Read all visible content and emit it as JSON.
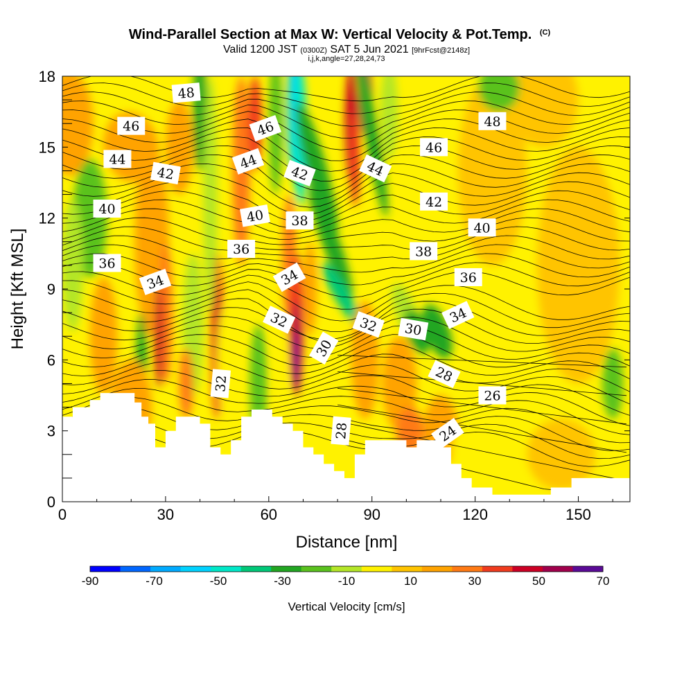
{
  "title": {
    "main": "Wind-Parallel Section at Max W: Vertical Velocity & Pot.Temp.",
    "copyright": "(C)",
    "valid_prefix": "Valid 1200 JST",
    "valid_utc": "(0300Z)",
    "valid_date": "SAT 5 Jun 2021",
    "forecast": "[9hrFcst@2148z]",
    "indices": "i,j,k,angle=27,28,24,73"
  },
  "chart_data": {
    "type": "heatmap",
    "xlabel": "Distance [nm]",
    "ylabel": "Height [Kft MSL]",
    "xlim": [
      0,
      165
    ],
    "ylim": [
      0,
      18
    ],
    "x_ticks": [
      0,
      30,
      60,
      90,
      120,
      150
    ],
    "y_ticks": [
      0,
      3,
      6,
      9,
      12,
      15,
      18
    ],
    "colorbar": {
      "title": "Vertical Velocity [cm/s]",
      "range": [
        -90,
        70
      ],
      "tick_labels": [
        -90,
        -70,
        -50,
        -30,
        -10,
        10,
        30,
        50,
        70
      ],
      "colors": [
        "#0000ff",
        "#0066ff",
        "#00aaff",
        "#00d2ff",
        "#00e8c8",
        "#00c878",
        "#22a622",
        "#5ac21e",
        "#b4e628",
        "#fff200",
        "#ffc400",
        "#ffa300",
        "#ff7a14",
        "#f03b1e",
        "#cc0024",
        "#a0004c",
        "#5a0a96"
      ]
    },
    "contour_variable": "Pot.Temp.",
    "contour_labels": [
      {
        "text": "48",
        "x": 36,
        "y": 17.3,
        "angle": -5
      },
      {
        "text": "46",
        "x": 20,
        "y": 15.9,
        "angle": 0
      },
      {
        "text": "44",
        "x": 16,
        "y": 14.5,
        "angle": 0
      },
      {
        "text": "42",
        "x": 30,
        "y": 13.9,
        "angle": 10
      },
      {
        "text": "40",
        "x": 13,
        "y": 12.4,
        "angle": 0
      },
      {
        "text": "36",
        "x": 13,
        "y": 10.1,
        "angle": 0
      },
      {
        "text": "34",
        "x": 27,
        "y": 9.3,
        "angle": -20
      },
      {
        "text": "46",
        "x": 59,
        "y": 15.8,
        "angle": -20
      },
      {
        "text": "44",
        "x": 54,
        "y": 14.4,
        "angle": -20
      },
      {
        "text": "40",
        "x": 56,
        "y": 12.1,
        "angle": -10
      },
      {
        "text": "36",
        "x": 52,
        "y": 10.7,
        "angle": 0
      },
      {
        "text": "42",
        "x": 69,
        "y": 13.9,
        "angle": 20
      },
      {
        "text": "38",
        "x": 69,
        "y": 11.9,
        "angle": 0
      },
      {
        "text": "34",
        "x": 66,
        "y": 9.5,
        "angle": -30
      },
      {
        "text": "32",
        "x": 63,
        "y": 7.7,
        "angle": 25
      },
      {
        "text": "30",
        "x": 76,
        "y": 6.5,
        "angle": -60
      },
      {
        "text": "32",
        "x": 89,
        "y": 7.5,
        "angle": 20
      },
      {
        "text": "44",
        "x": 91,
        "y": 14.1,
        "angle": 25
      },
      {
        "text": "46",
        "x": 108,
        "y": 15.0,
        "angle": 0
      },
      {
        "text": "48",
        "x": 125,
        "y": 16.1,
        "angle": 0
      },
      {
        "text": "42",
        "x": 108,
        "y": 12.7,
        "angle": 0
      },
      {
        "text": "40",
        "x": 122,
        "y": 11.6,
        "angle": 0
      },
      {
        "text": "38",
        "x": 105,
        "y": 10.6,
        "angle": 0
      },
      {
        "text": "36",
        "x": 118,
        "y": 9.5,
        "angle": 0
      },
      {
        "text": "34",
        "x": 115,
        "y": 7.9,
        "angle": -25
      },
      {
        "text": "30",
        "x": 102,
        "y": 7.3,
        "angle": 10
      },
      {
        "text": "28",
        "x": 111,
        "y": 5.4,
        "angle": 25
      },
      {
        "text": "26",
        "x": 125,
        "y": 4.5,
        "angle": 0
      },
      {
        "text": "24",
        "x": 112,
        "y": 2.9,
        "angle": -35
      },
      {
        "text": "32",
        "x": 46,
        "y": 5.0,
        "angle": -85
      },
      {
        "text": "28",
        "x": 81,
        "y": 3.0,
        "angle": -85
      }
    ]
  }
}
